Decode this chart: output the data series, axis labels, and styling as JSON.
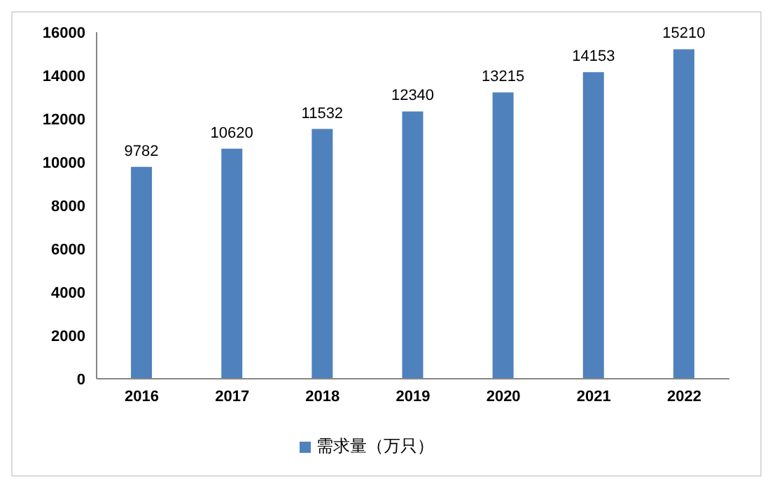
{
  "chart_data": {
    "type": "bar",
    "categories": [
      "2016",
      "2017",
      "2018",
      "2019",
      "2020",
      "2021",
      "2022"
    ],
    "series": [
      {
        "name": "需求量（万只）",
        "color": "#4f81bd",
        "values": [
          9782,
          10620,
          11532,
          12340,
          13215,
          14153,
          15210
        ]
      }
    ],
    "ylim": [
      0,
      16000
    ],
    "yticks": [
      0,
      2000,
      4000,
      6000,
      8000,
      10000,
      12000,
      14000,
      16000
    ],
    "grid": false,
    "legend": "bottom",
    "data_labels": true
  }
}
